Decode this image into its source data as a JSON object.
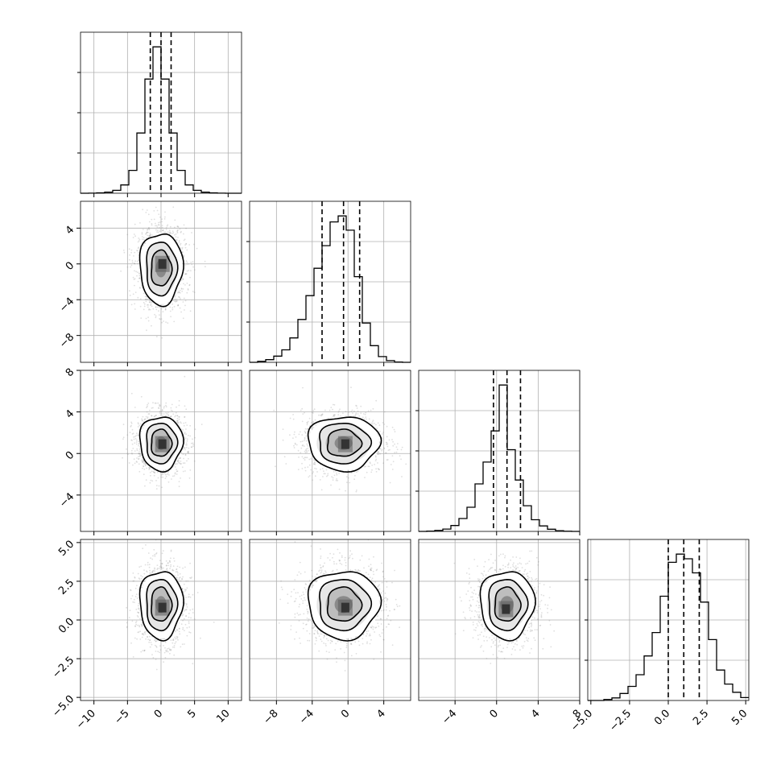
{
  "chart_data": {
    "type": "corner",
    "n_params": 4,
    "axis_ranges": [
      [
        -12,
        12
      ],
      [
        -11,
        7
      ],
      [
        -7.5,
        8
      ],
      [
        -5.2,
        5.2
      ]
    ],
    "ticks": [
      {
        "values": [
          -10,
          -5,
          0,
          5,
          10
        ],
        "labels": [
          "−10",
          "−5",
          "0",
          "5",
          "10"
        ]
      },
      {
        "values": [
          -8,
          -4,
          0,
          4
        ],
        "labels": [
          "−8",
          "−4",
          "0",
          "4"
        ]
      },
      {
        "values": [
          -4,
          0,
          4,
          8
        ],
        "labels": [
          "−4",
          "0",
          "4",
          "8"
        ]
      },
      {
        "values": [
          -5,
          -2.5,
          0,
          2.5,
          5
        ],
        "labels": [
          "−5.0",
          "−2.5",
          "0.0",
          "2.5",
          "5.0"
        ]
      }
    ],
    "grid": true,
    "marginals": [
      {
        "param": 0,
        "bin_edges": [
          -12,
          -10.8,
          -9.6,
          -8.4,
          -7.2,
          -6,
          -4.8,
          -3.6,
          -2.4,
          -1.2,
          0,
          1.2,
          2.4,
          3.6,
          4.8,
          6,
          7.2,
          8.4,
          9.6,
          10.8,
          12
        ],
        "counts": [
          0,
          1,
          4,
          10,
          28,
          80,
          220,
          580,
          1100,
          1410,
          1100,
          580,
          220,
          80,
          28,
          10,
          4,
          1,
          0,
          0
        ],
        "quantiles": [
          -1.6,
          0.0,
          1.5
        ]
      },
      {
        "param": 1,
        "bin_edges": [
          -11,
          -10.1,
          -9.2,
          -8.3,
          -7.4,
          -6.5,
          -5.6,
          -4.7,
          -3.8,
          -2.9,
          -2,
          -1.1,
          -0.2,
          0.7,
          1.6,
          2.5,
          3.4,
          4.3,
          5.2,
          6.1,
          7
        ],
        "counts": [
          0,
          8,
          22,
          52,
          105,
          205,
          360,
          560,
          790,
          980,
          1180,
          1230,
          1110,
          720,
          330,
          140,
          48,
          14,
          3,
          0
        ],
        "quantiles": [
          -2.9,
          -0.5,
          1.3
        ]
      },
      {
        "param": 2,
        "bin_edges": [
          -7.5,
          -6.725,
          -5.95,
          -5.175,
          -4.4,
          -3.625,
          -2.85,
          -2.075,
          -1.3,
          -0.525,
          0.25,
          1.025,
          1.8,
          2.575,
          3.35,
          4.125,
          4.9,
          5.675,
          6.45,
          7.225,
          8
        ],
        "counts": [
          0,
          4,
          12,
          30,
          75,
          165,
          310,
          610,
          890,
          1290,
          1880,
          1050,
          660,
          330,
          150,
          70,
          28,
          8,
          2,
          0
        ],
        "quantiles": [
          -0.3,
          1.0,
          2.3
        ]
      },
      {
        "param": 3,
        "bin_edges": [
          -5.2,
          -4.68,
          -4.16,
          -3.64,
          -3.12,
          -2.6,
          -2.08,
          -1.56,
          -1.04,
          -0.52,
          0,
          0.52,
          1.04,
          1.56,
          2.08,
          2.6,
          3.12,
          3.64,
          4.16,
          4.68,
          5.2
        ],
        "counts": [
          0,
          0,
          8,
          22,
          60,
          120,
          220,
          380,
          580,
          890,
          1180,
          1250,
          1210,
          1090,
          840,
          520,
          260,
          140,
          70,
          25
        ],
        "quantiles": [
          0.0,
          1.0,
          2.0
        ]
      }
    ],
    "pairs": [
      {
        "x_param": 0,
        "y_param": 1,
        "center": [
          0.0,
          -0.5
        ],
        "sigma": [
          1.6,
          2.0
        ],
        "peak": [
          0.2,
          0.0
        ]
      },
      {
        "x_param": 0,
        "y_param": 2,
        "center": [
          0.0,
          1.0
        ],
        "sigma": [
          1.6,
          1.3
        ],
        "peak": [
          0.2,
          0.9
        ]
      },
      {
        "x_param": 1,
        "y_param": 2,
        "center": [
          -0.5,
          1.0
        ],
        "sigma": [
          2.0,
          1.3
        ],
        "peak": [
          -0.3,
          0.9
        ]
      },
      {
        "x_param": 0,
        "y_param": 3,
        "center": [
          0.0,
          1.0
        ],
        "sigma": [
          1.6,
          1.1
        ],
        "peak": [
          0.2,
          0.8
        ]
      },
      {
        "x_param": 1,
        "y_param": 3,
        "center": [
          -0.5,
          1.0
        ],
        "sigma": [
          2.0,
          1.1
        ],
        "peak": [
          -0.3,
          0.8
        ]
      },
      {
        "x_param": 2,
        "y_param": 3,
        "center": [
          1.0,
          1.0
        ],
        "sigma": [
          1.3,
          1.1
        ],
        "peak": [
          0.9,
          0.7
        ]
      }
    ],
    "contour_levels_sigma": [
      0.5,
      1.0,
      1.5,
      2.0
    ],
    "colors": {
      "line": "#000000",
      "points": "#8c8c8c",
      "grid": "#b0b0b0"
    }
  }
}
